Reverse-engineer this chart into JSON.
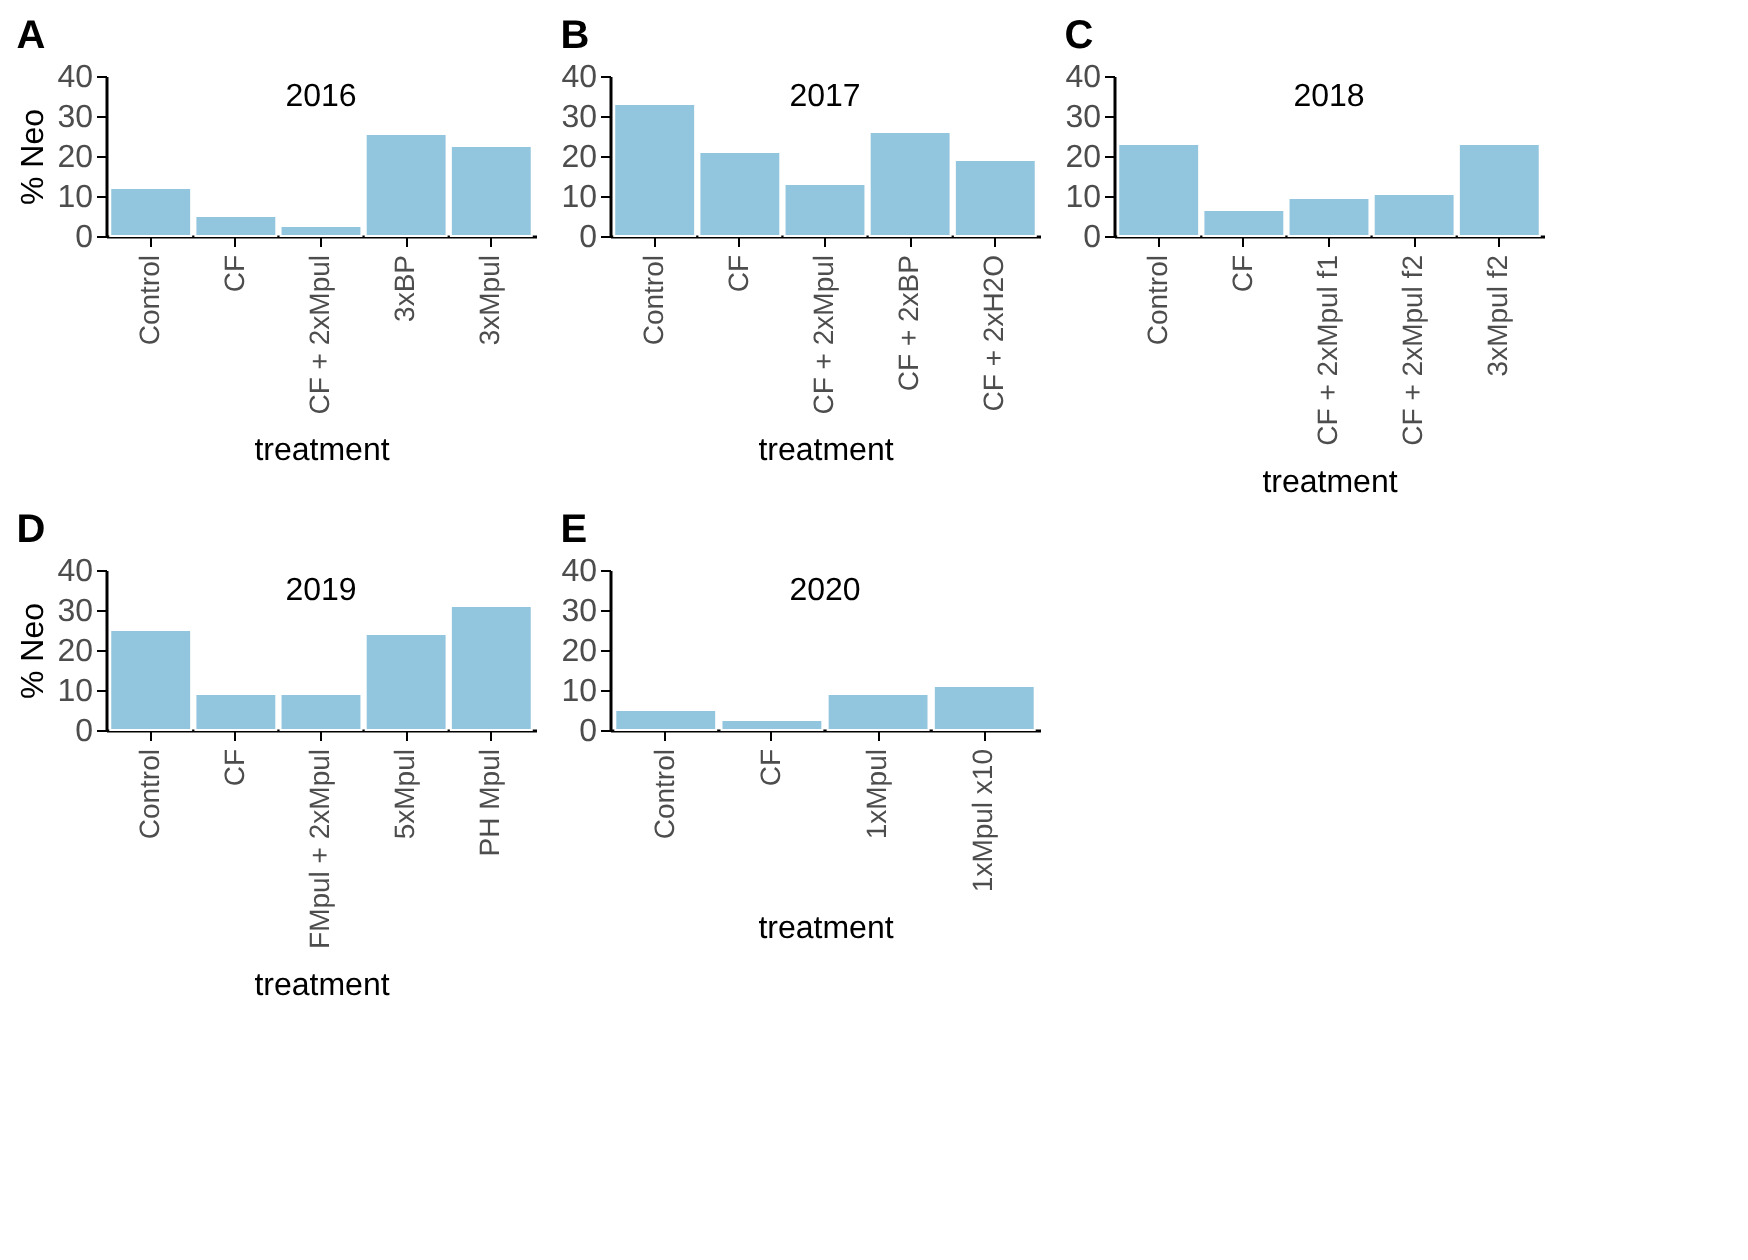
{
  "chart_data": [
    {
      "type": "bar",
      "title": "2016",
      "xlabel": "treatment",
      "ylabel": "% Neo",
      "annotations": [
        "A"
      ],
      "categories": [
        "Control",
        "CF",
        "CF + 2xMpul",
        "3xBP",
        "3xMpul"
      ],
      "values": [
        12,
        5,
        2.5,
        25.5,
        22.5
      ],
      "color": "#92c5de",
      "ylim": [
        0,
        40
      ],
      "yticks": [
        0,
        10,
        20,
        30,
        40
      ],
      "grid": false
    },
    {
      "type": "bar",
      "title": "2017",
      "xlabel": "treatment",
      "annotations": [
        "B"
      ],
      "categories": [
        "Control",
        "CF",
        "CF + 2xMpul",
        "CF + 2xBP",
        "CF + 2xH2O"
      ],
      "values": [
        33,
        21,
        13,
        26,
        19
      ],
      "color": "#92c5de",
      "ylim": [
        0,
        40
      ],
      "yticks": [
        0,
        10,
        20,
        30,
        40
      ],
      "grid": false
    },
    {
      "type": "bar",
      "title": "2018",
      "xlabel": "treatment",
      "annotations": [
        "C"
      ],
      "categories": [
        "Control",
        "CF",
        "CF + 2xMpul f1",
        "CF + 2xMpul f2",
        "3xMpul f2"
      ],
      "values": [
        23,
        6.5,
        9.5,
        10.5,
        23
      ],
      "color": "#92c5de",
      "ylim": [
        0,
        40
      ],
      "yticks": [
        0,
        10,
        20,
        30,
        40
      ],
      "grid": false
    },
    {
      "type": "bar",
      "title": "2019",
      "xlabel": "treatment",
      "ylabel": "% Neo",
      "annotations": [
        "D"
      ],
      "categories": [
        "Control",
        "CF",
        "FMpul + 2xMpul",
        "5xMpul",
        "PH Mpul"
      ],
      "values": [
        25,
        9,
        9,
        24,
        31
      ],
      "color": "#92c5de",
      "ylim": [
        0,
        40
      ],
      "yticks": [
        0,
        10,
        20,
        30,
        40
      ],
      "grid": false
    },
    {
      "type": "bar",
      "title": "2020",
      "xlabel": "treatment",
      "annotations": [
        "E"
      ],
      "categories": [
        "Control",
        "CF",
        "1xMpul",
        "1xMpul x10"
      ],
      "values": [
        5,
        2.5,
        9,
        11
      ],
      "color": "#92c5de",
      "ylim": [
        0,
        40
      ],
      "yticks": [
        0,
        10,
        20,
        30,
        40
      ],
      "grid": false
    }
  ]
}
